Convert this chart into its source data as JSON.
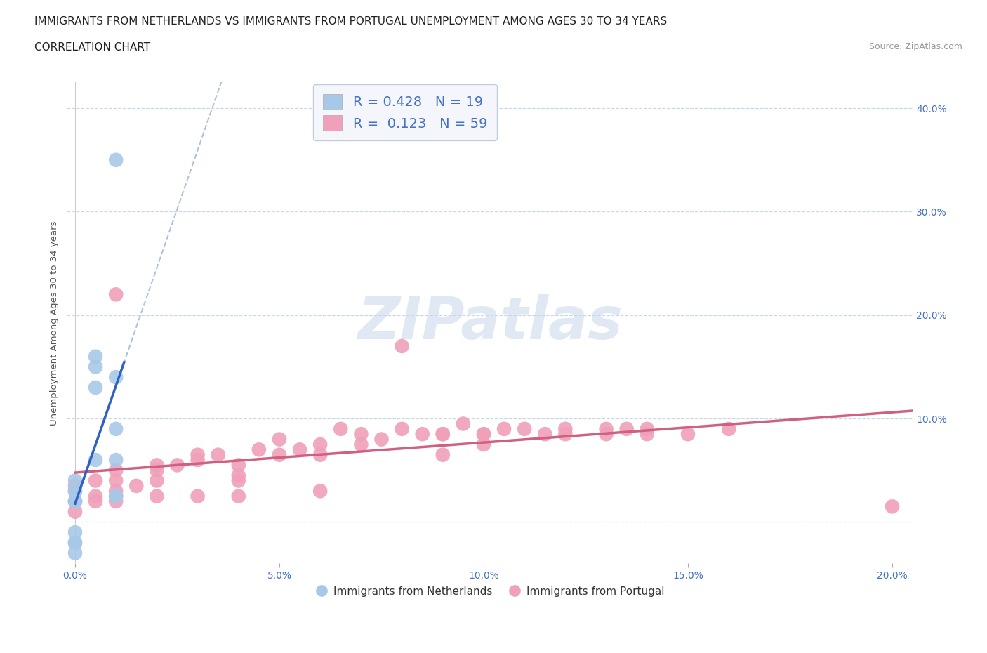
{
  "title_line1": "IMMIGRANTS FROM NETHERLANDS VS IMMIGRANTS FROM PORTUGAL UNEMPLOYMENT AMONG AGES 30 TO 34 YEARS",
  "title_line2": "CORRELATION CHART",
  "source_text": "Source: ZipAtlas.com",
  "ylabel": "Unemployment Among Ages 30 to 34 years",
  "watermark": "ZIPatlas",
  "xlim": [
    -0.002,
    0.205
  ],
  "ylim": [
    -0.04,
    0.425
  ],
  "xticks": [
    0.0,
    0.05,
    0.1,
    0.15,
    0.2
  ],
  "xtick_labels": [
    "0.0%",
    "5.0%",
    "10.0%",
    "15.0%",
    "20.0%"
  ],
  "yticks_right": [
    0.0,
    0.1,
    0.2,
    0.3,
    0.4
  ],
  "ytick_labels_right": [
    "",
    "10.0%",
    "20.0%",
    "30.0%",
    "40.0%"
  ],
  "netherlands_R": 0.428,
  "netherlands_N": 19,
  "portugal_R": 0.123,
  "portugal_N": 59,
  "netherlands_color": "#a8c8e8",
  "netherlands_line_color": "#3060c0",
  "portugal_color": "#f0a0b8",
  "portugal_line_color": "#d06080",
  "netherlands_x": [
    0.0,
    0.0,
    0.0,
    0.0,
    0.0,
    0.0,
    0.0,
    0.0,
    0.0,
    0.005,
    0.005,
    0.005,
    0.005,
    0.01,
    0.01,
    0.01,
    0.01,
    0.01,
    0.01
  ],
  "netherlands_y": [
    0.04,
    0.03,
    0.02,
    0.02,
    0.03,
    -0.01,
    -0.02,
    -0.02,
    -0.03,
    0.13,
    0.15,
    0.16,
    0.06,
    0.14,
    0.09,
    0.06,
    0.025,
    0.025,
    0.35
  ],
  "portugal_x": [
    0.0,
    0.0,
    0.0,
    0.005,
    0.005,
    0.005,
    0.01,
    0.01,
    0.01,
    0.01,
    0.01,
    0.015,
    0.02,
    0.02,
    0.02,
    0.02,
    0.025,
    0.03,
    0.03,
    0.03,
    0.035,
    0.04,
    0.04,
    0.04,
    0.04,
    0.045,
    0.05,
    0.05,
    0.055,
    0.06,
    0.06,
    0.06,
    0.065,
    0.07,
    0.07,
    0.075,
    0.08,
    0.08,
    0.085,
    0.09,
    0.09,
    0.09,
    0.095,
    0.1,
    0.1,
    0.1,
    0.105,
    0.11,
    0.115,
    0.12,
    0.12,
    0.13,
    0.13,
    0.135,
    0.14,
    0.14,
    0.15,
    0.16,
    0.2
  ],
  "portugal_y": [
    0.035,
    0.02,
    0.01,
    0.04,
    0.025,
    0.02,
    0.05,
    0.04,
    0.03,
    0.02,
    0.22,
    0.035,
    0.055,
    0.05,
    0.04,
    0.025,
    0.055,
    0.065,
    0.06,
    0.025,
    0.065,
    0.055,
    0.045,
    0.04,
    0.025,
    0.07,
    0.08,
    0.065,
    0.07,
    0.075,
    0.065,
    0.03,
    0.09,
    0.085,
    0.075,
    0.08,
    0.09,
    0.17,
    0.085,
    0.085,
    0.085,
    0.065,
    0.095,
    0.085,
    0.085,
    0.075,
    0.09,
    0.09,
    0.085,
    0.09,
    0.085,
    0.09,
    0.085,
    0.09,
    0.09,
    0.085,
    0.085,
    0.09,
    0.015
  ],
  "background_color": "#ffffff",
  "grid_color": "#c8d8e8",
  "title_fontsize": 11,
  "axis_label_fontsize": 9.5,
  "tick_fontsize": 10,
  "legend_fontsize": 14
}
